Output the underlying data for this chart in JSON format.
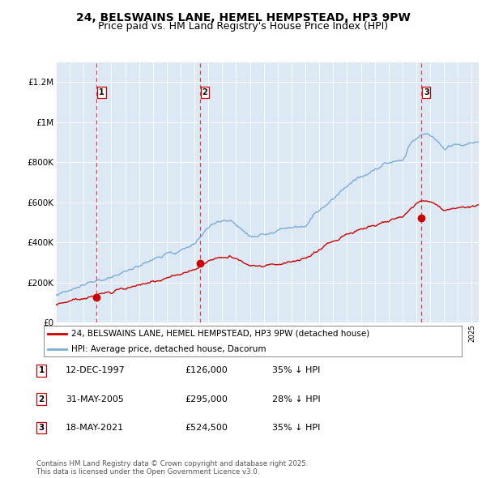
{
  "title": "24, BELSWAINS LANE, HEMEL HEMPSTEAD, HP3 9PW",
  "subtitle": "Price paid vs. HM Land Registry's House Price Index (HPI)",
  "title_fontsize": 10,
  "subtitle_fontsize": 9,
  "background_color": "#ffffff",
  "plot_bg_color": "#dce9f5",
  "grid_color": "#ffffff",
  "red_line_color": "#cc0000",
  "blue_line_color": "#7aacd6",
  "sale_marker_color": "#cc0000",
  "dashed_line_color": "#dd4444",
  "ylim": [
    0,
    1300000
  ],
  "yticks": [
    0,
    200000,
    400000,
    600000,
    800000,
    1000000,
    1200000
  ],
  "ytick_labels": [
    "£0",
    "£200K",
    "£400K",
    "£600K",
    "£800K",
    "£1M",
    "£1.2M"
  ],
  "xstart_year": 1995,
  "xend_year": 2025,
  "sales": [
    {
      "label": "1",
      "year": 1997.95,
      "price": 126000
    },
    {
      "label": "2",
      "year": 2005.41,
      "price": 295000
    },
    {
      "label": "3",
      "year": 2021.37,
      "price": 524500
    }
  ],
  "legend_red_label": "24, BELSWAINS LANE, HEMEL HEMPSTEAD, HP3 9PW (detached house)",
  "legend_blue_label": "HPI: Average price, detached house, Dacorum",
  "table_rows": [
    {
      "num": "1",
      "date": "12-DEC-1997",
      "price": "£126,000",
      "pct": "35% ↓ HPI"
    },
    {
      "num": "2",
      "date": "31-MAY-2005",
      "price": "£295,000",
      "pct": "28% ↓ HPI"
    },
    {
      "num": "3",
      "date": "18-MAY-2021",
      "price": "£524,500",
      "pct": "35% ↓ HPI"
    }
  ],
  "footer": "Contains HM Land Registry data © Crown copyright and database right 2025.\nThis data is licensed under the Open Government Licence v3.0."
}
